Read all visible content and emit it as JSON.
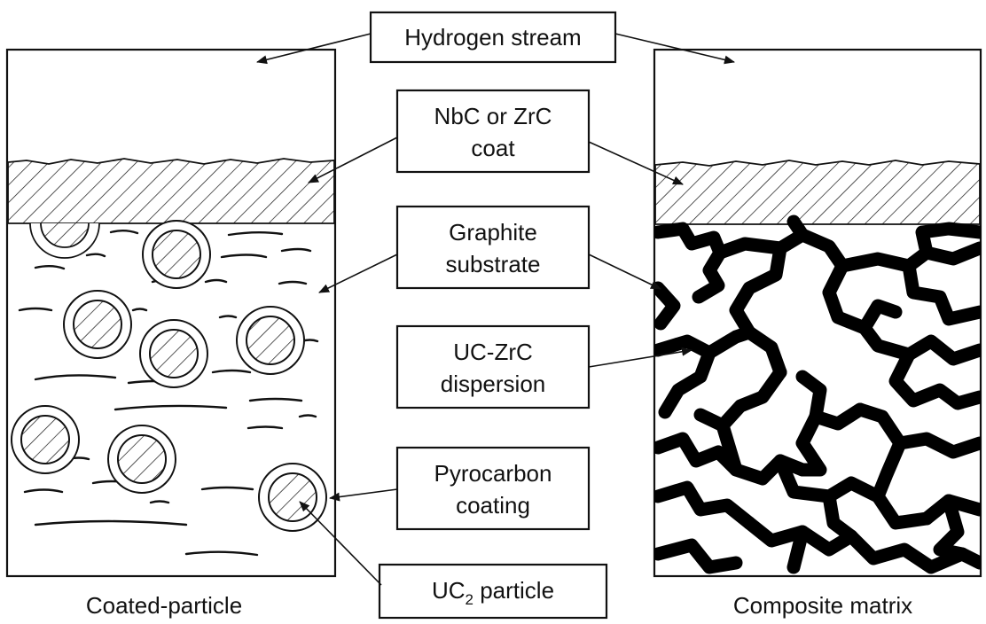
{
  "labels": {
    "hydrogen": "Hydrogen stream",
    "coat_1": "NbC or ZrC",
    "coat_2": "coat",
    "graphite_1": "Graphite",
    "graphite_2": "substrate",
    "dispersion_1": "UC-ZrC",
    "dispersion_2": "dispersion",
    "pyro_1": "Pyrocarbon",
    "pyro_2": "coating",
    "uc2_main": "UC",
    "uc2_sub": "2",
    "uc2_rest": " particle"
  },
  "captions": {
    "left": "Coated-particle",
    "right": "Composite matrix"
  },
  "colors": {
    "ink": "#111111",
    "background": "#ffffff"
  }
}
